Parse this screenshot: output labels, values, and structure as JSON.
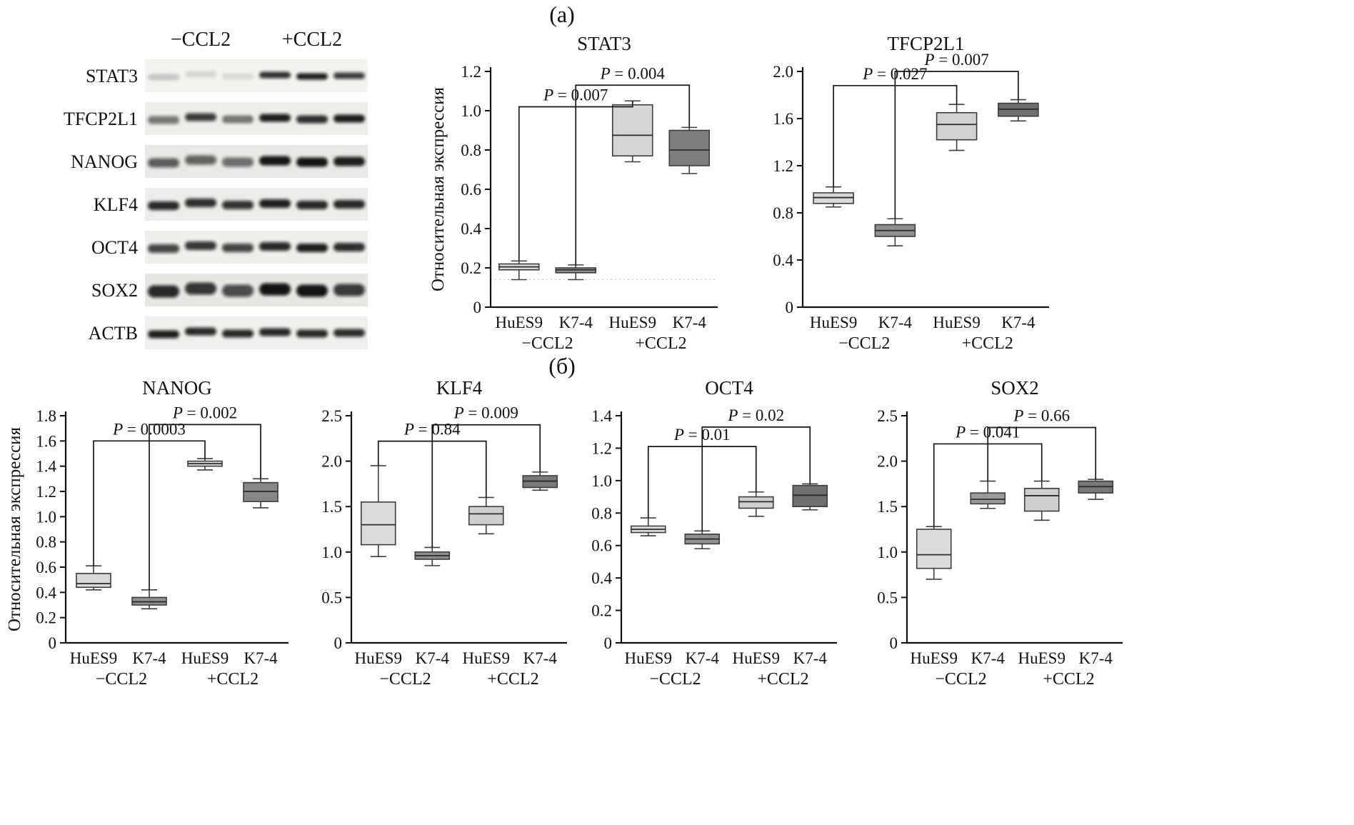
{
  "figure": {
    "panel_a_label": "(а)",
    "panel_b_label": "(б)"
  },
  "blot": {
    "group_labels": [
      "−CCL2",
      "+CCL2"
    ],
    "rows": [
      {
        "label": "STAT3",
        "bg": "#f3f2ef",
        "band_h": 9,
        "intensities": [
          0.18,
          0.12,
          0.1,
          0.85,
          0.92,
          0.8
        ]
      },
      {
        "label": "TFCP2L1",
        "bg": "#eeede9",
        "band_h": 11,
        "intensities": [
          0.55,
          0.8,
          0.5,
          0.92,
          0.85,
          0.93
        ]
      },
      {
        "label": "NANOG",
        "bg": "#e9e8e4",
        "band_h": 13,
        "intensities": [
          0.65,
          0.62,
          0.58,
          0.96,
          0.97,
          0.92
        ]
      },
      {
        "label": "KLF4",
        "bg": "#edece8",
        "band_h": 12,
        "intensities": [
          0.88,
          0.85,
          0.83,
          0.92,
          0.88,
          0.87
        ]
      },
      {
        "label": "OCT4",
        "bg": "#efeeea",
        "band_h": 12,
        "intensities": [
          0.76,
          0.82,
          0.76,
          0.88,
          0.92,
          0.86
        ]
      },
      {
        "label": "SOX2",
        "bg": "#e8e7e3",
        "band_h": 17,
        "intensities": [
          0.88,
          0.82,
          0.72,
          0.97,
          0.97,
          0.8
        ]
      },
      {
        "label": "ACTB",
        "bg": "#f0efeb",
        "band_h": 11,
        "intensities": [
          0.92,
          0.88,
          0.87,
          0.88,
          0.87,
          0.86
        ]
      }
    ]
  },
  "chart_data": [
    {
      "type": "boxplot",
      "panel": "а",
      "title": "STAT3",
      "ylabel": "Относительная экспрессия",
      "ylim": [
        0,
        1.2
      ],
      "yticks": [
        "0",
        "0.2",
        "0.4",
        "0.6",
        "0.8",
        "1.0",
        "1.2"
      ],
      "categories": [
        "HuES9",
        "K7-4",
        "HuES9",
        "K7-4"
      ],
      "group_labels": [
        "−CCL2",
        "+CCL2"
      ],
      "faint_line": 0.14,
      "boxes": [
        {
          "whisker_low": 0.14,
          "q1": 0.19,
          "median": 0.205,
          "q3": 0.22,
          "whisker_high": 0.235,
          "fill": "#d9d9d9"
        },
        {
          "whisker_low": 0.14,
          "q1": 0.175,
          "median": 0.19,
          "q3": 0.2,
          "whisker_high": 0.215,
          "fill": "#8f8f8f"
        },
        {
          "whisker_low": 0.74,
          "q1": 0.77,
          "median": 0.875,
          "q3": 1.03,
          "whisker_high": 1.05,
          "fill": "#d6d6d6"
        },
        {
          "whisker_low": 0.68,
          "q1": 0.72,
          "median": 0.8,
          "q3": 0.9,
          "whisker_high": 0.915,
          "fill": "#7d7d7d"
        }
      ],
      "brackets": [
        {
          "from": 0,
          "to": 2,
          "height": 1.02,
          "label": "P = 0.007"
        },
        {
          "from": 1,
          "to": 3,
          "height": 1.13,
          "label": "P = 0.004"
        }
      ]
    },
    {
      "type": "boxplot",
      "panel": "а",
      "title": "TFCP2L1",
      "ylabel": "",
      "ylim": [
        0,
        2.0
      ],
      "yticks": [
        "0",
        "0.4",
        "0.8",
        "1.2",
        "1.6",
        "2.0"
      ],
      "categories": [
        "HuES9",
        "K7-4",
        "HuES9",
        "K7-4"
      ],
      "group_labels": [
        "−CCL2",
        "+CCL2"
      ],
      "boxes": [
        {
          "whisker_low": 0.85,
          "q1": 0.88,
          "median": 0.93,
          "q3": 0.97,
          "whisker_high": 1.02,
          "fill": "#d9d9d9"
        },
        {
          "whisker_low": 0.52,
          "q1": 0.6,
          "median": 0.65,
          "q3": 0.7,
          "whisker_high": 0.75,
          "fill": "#8f8f8f"
        },
        {
          "whisker_low": 1.33,
          "q1": 1.42,
          "median": 1.55,
          "q3": 1.65,
          "whisker_high": 1.72,
          "fill": "#d2d2d2"
        },
        {
          "whisker_low": 1.58,
          "q1": 1.62,
          "median": 1.68,
          "q3": 1.73,
          "whisker_high": 1.76,
          "fill": "#6f6f6f"
        }
      ],
      "brackets": [
        {
          "from": 0,
          "to": 2,
          "height": 1.88,
          "label": "P = 0.027"
        },
        {
          "from": 1,
          "to": 3,
          "height": 2.0,
          "label": "P = 0.007"
        }
      ]
    },
    {
      "type": "boxplot",
      "panel": "б",
      "title": "NANOG",
      "ylabel": "Относительная экспрессия",
      "ylim": [
        0,
        1.8
      ],
      "yticks": [
        "0",
        "0.2",
        "0.4",
        "0.6",
        "0.8",
        "1.0",
        "1.2",
        "1.4",
        "1.6",
        "1.8"
      ],
      "categories": [
        "HuES9",
        "K7-4",
        "HuES9",
        "K7-4"
      ],
      "group_labels": [
        "−CCL2",
        "+CCL2"
      ],
      "boxes": [
        {
          "whisker_low": 0.42,
          "q1": 0.44,
          "median": 0.47,
          "q3": 0.55,
          "whisker_high": 0.61,
          "fill": "#d9d9d9"
        },
        {
          "whisker_low": 0.27,
          "q1": 0.3,
          "median": 0.325,
          "q3": 0.36,
          "whisker_high": 0.42,
          "fill": "#8f8f8f"
        },
        {
          "whisker_low": 1.37,
          "q1": 1.4,
          "median": 1.42,
          "q3": 1.44,
          "whisker_high": 1.46,
          "fill": "#d9d9d9"
        },
        {
          "whisker_low": 1.07,
          "q1": 1.12,
          "median": 1.2,
          "q3": 1.27,
          "whisker_high": 1.3,
          "fill": "#878787"
        }
      ],
      "brackets": [
        {
          "from": 0,
          "to": 2,
          "height": 1.6,
          "label": "P = 0.0003"
        },
        {
          "from": 1,
          "to": 3,
          "height": 1.73,
          "label": "P = 0.002"
        }
      ]
    },
    {
      "type": "boxplot",
      "panel": "б",
      "title": "KLF4",
      "ylabel": "",
      "ylim": [
        0,
        2.5
      ],
      "yticks": [
        "0",
        "0.5",
        "1.0",
        "1.5",
        "2.0",
        "2.5"
      ],
      "categories": [
        "HuES9",
        "K7-4",
        "HuES9",
        "K7-4"
      ],
      "group_labels": [
        "−CCL2",
        "+CCL2"
      ],
      "boxes": [
        {
          "whisker_low": 0.95,
          "q1": 1.08,
          "median": 1.3,
          "q3": 1.55,
          "whisker_high": 1.95,
          "fill": "#dcdcdc"
        },
        {
          "whisker_low": 0.85,
          "q1": 0.92,
          "median": 0.96,
          "q3": 1.0,
          "whisker_high": 1.05,
          "fill": "#8f8f8f"
        },
        {
          "whisker_low": 1.2,
          "q1": 1.3,
          "median": 1.42,
          "q3": 1.5,
          "whisker_high": 1.6,
          "fill": "#cfcfcf"
        },
        {
          "whisker_low": 1.68,
          "q1": 1.71,
          "median": 1.78,
          "q3": 1.84,
          "whisker_high": 1.88,
          "fill": "#7a7a7a"
        }
      ],
      "brackets": [
        {
          "from": 0,
          "to": 2,
          "height": 2.22,
          "label": "P = 0.84"
        },
        {
          "from": 1,
          "to": 3,
          "height": 2.4,
          "label": "P = 0.009"
        }
      ]
    },
    {
      "type": "boxplot",
      "panel": "б",
      "title": "OCT4",
      "ylabel": "",
      "ylim": [
        0,
        1.4
      ],
      "yticks": [
        "0",
        "0.2",
        "0.4",
        "0.6",
        "0.8",
        "1.0",
        "1.2",
        "1.4"
      ],
      "categories": [
        "HuES9",
        "K7-4",
        "HuES9",
        "K7-4"
      ],
      "group_labels": [
        "−CCL2",
        "+CCL2"
      ],
      "boxes": [
        {
          "whisker_low": 0.66,
          "q1": 0.68,
          "median": 0.7,
          "q3": 0.72,
          "whisker_high": 0.77,
          "fill": "#dcdcdc"
        },
        {
          "whisker_low": 0.58,
          "q1": 0.61,
          "median": 0.64,
          "q3": 0.67,
          "whisker_high": 0.69,
          "fill": "#8f8f8f"
        },
        {
          "whisker_low": 0.78,
          "q1": 0.83,
          "median": 0.87,
          "q3": 0.9,
          "whisker_high": 0.93,
          "fill": "#cfcfcf"
        },
        {
          "whisker_low": 0.82,
          "q1": 0.84,
          "median": 0.91,
          "q3": 0.97,
          "whisker_high": 0.98,
          "fill": "#6f6f6f"
        }
      ],
      "brackets": [
        {
          "from": 0,
          "to": 2,
          "height": 1.21,
          "label": "P = 0.01"
        },
        {
          "from": 1,
          "to": 3,
          "height": 1.33,
          "label": "P = 0.02"
        }
      ]
    },
    {
      "type": "boxplot",
      "panel": "б",
      "title": "SOX2",
      "ylabel": "",
      "ylim": [
        0,
        2.5
      ],
      "yticks": [
        "0",
        "0.5",
        "1.0",
        "1.5",
        "2.0",
        "2.5"
      ],
      "categories": [
        "HuES9",
        "K7-4",
        "HuES9",
        "K7-4"
      ],
      "group_labels": [
        "−CCL2",
        "+CCL2"
      ],
      "boxes": [
        {
          "whisker_low": 0.7,
          "q1": 0.82,
          "median": 0.97,
          "q3": 1.25,
          "whisker_high": 1.28,
          "fill": "#dcdcdc"
        },
        {
          "whisker_low": 1.48,
          "q1": 1.53,
          "median": 1.58,
          "q3": 1.65,
          "whisker_high": 1.78,
          "fill": "#9a9a9a"
        },
        {
          "whisker_low": 1.35,
          "q1": 1.45,
          "median": 1.62,
          "q3": 1.7,
          "whisker_high": 1.78,
          "fill": "#cfcfcf"
        },
        {
          "whisker_low": 1.58,
          "q1": 1.65,
          "median": 1.72,
          "q3": 1.78,
          "whisker_high": 1.8,
          "fill": "#787878"
        }
      ],
      "brackets": [
        {
          "from": 0,
          "to": 2,
          "height": 2.19,
          "label": "P = 0.041"
        },
        {
          "from": 1,
          "to": 3,
          "height": 2.37,
          "label": "P = 0.66"
        }
      ]
    }
  ]
}
